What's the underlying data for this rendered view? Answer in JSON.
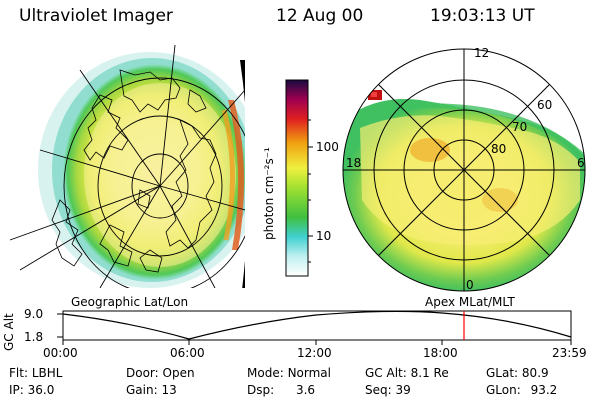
{
  "header": {
    "instrument": "Ultraviolet Imager",
    "date": "12 Aug 00",
    "time": "19:03:13 UT"
  },
  "colorbar": {
    "unit_label": "photon cm⁻²s⁻¹",
    "ticks": [
      "100",
      "10"
    ]
  },
  "geo_panel": {
    "label": "Geographic Lat/Lon"
  },
  "apex_panel": {
    "label": "Apex MLat/MLT",
    "mlt_labels": [
      "12",
      "18",
      "6",
      "0"
    ],
    "lat_labels": [
      "60",
      "70",
      "80"
    ]
  },
  "altitude_plot": {
    "ylabel": "GC Alt",
    "yticks": [
      "9.0",
      "1.8"
    ],
    "xticks": [
      "00:00",
      "06:00",
      "12:00",
      "18:00",
      "23:59"
    ],
    "current_time_marker": "19:03"
  },
  "info": [
    {
      "label": "Flt:",
      "value": "LBHL"
    },
    {
      "label": "Door:",
      "value": "Open"
    },
    {
      "label": "Mode:",
      "value": "Normal"
    },
    {
      "label": "GC Alt:",
      "value": "8.1 Re"
    },
    {
      "label": "GLat:",
      "value": "80.9"
    },
    {
      "label": "IP:",
      "value": "36.0"
    },
    {
      "label": "Gain:",
      "value": "13"
    },
    {
      "label": "Dsp:",
      "value": "3.6"
    },
    {
      "label": "Seq:",
      "value": "39"
    },
    {
      "label": "GLon:",
      "value": "93.2"
    }
  ],
  "colors": {
    "aurora_green": "#3cc84a",
    "aurora_yellow": "#f2f24a",
    "aurora_orange": "#f0a020",
    "aurora_red": "#c01010",
    "marker_red": "#ff0000"
  }
}
